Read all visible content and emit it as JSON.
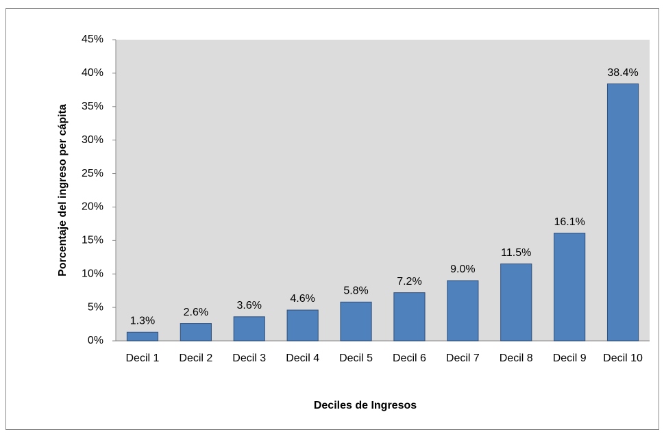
{
  "chart_data": {
    "type": "bar",
    "x_label": "Deciles de Ingresos",
    "y_label": "Porcentaje del ingreso per cápita",
    "categories": [
      "Decil 1",
      "Decil 2",
      "Decil 3",
      "Decil 4",
      "Decil 5",
      "Decil 6",
      "Decil 7",
      "Decil 8",
      "Decil 9",
      "Decil 10"
    ],
    "values": [
      1.3,
      2.6,
      3.6,
      4.6,
      5.8,
      7.2,
      9.0,
      11.5,
      16.1,
      38.4
    ],
    "value_labels": [
      "1.3%",
      "2.6%",
      "3.6%",
      "4.6%",
      "5.8%",
      "7.2%",
      "9.0%",
      "11.5%",
      "16.1%",
      "38.4%"
    ],
    "color": "#4f81bd",
    "ylim": [
      0,
      45
    ],
    "yticks": [
      {
        "value": 0,
        "label": "0%"
      },
      {
        "value": 5,
        "label": "5%"
      },
      {
        "value": 10,
        "label": "10%"
      },
      {
        "value": 15,
        "label": "15%"
      },
      {
        "value": 20,
        "label": "20%"
      },
      {
        "value": 25,
        "label": "25%"
      },
      {
        "value": 30,
        "label": "30%"
      },
      {
        "value": 35,
        "label": "35%"
      },
      {
        "value": 40,
        "label": "40%"
      },
      {
        "value": 45,
        "label": "45%"
      }
    ]
  }
}
